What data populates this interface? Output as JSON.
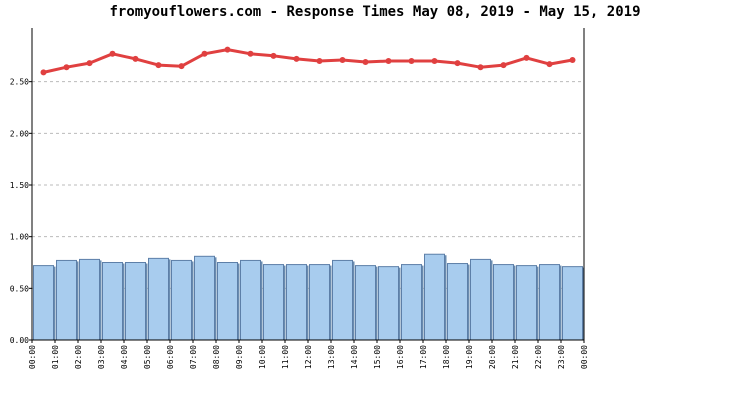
{
  "chart_data": {
    "type": "bar",
    "title": "fromyouflowers.com - Response Times May 08, 2019 - May 15, 2019",
    "xlabel": "",
    "ylabel": "",
    "ylim": [
      0,
      3.0
    ],
    "yticks": [
      "0.00",
      "0.50",
      "1.00",
      "1.50",
      "2.00",
      "2.50"
    ],
    "ytick_values": [
      0,
      0.5,
      1.0,
      1.5,
      2.0,
      2.5
    ],
    "x_labels": [
      "00:00",
      "01:00",
      "02:00",
      "03:00",
      "04:00",
      "05:00",
      "06:00",
      "07:00",
      "08:00",
      "09:00",
      "10:00",
      "11:00",
      "12:00",
      "13:00",
      "14:00",
      "15:00",
      "16:00",
      "17:00",
      "18:00",
      "19:00",
      "20:00",
      "21:00",
      "22:00",
      "23:00",
      "00:00"
    ],
    "grid": true,
    "legend": "none",
    "series": [
      {
        "type": "bar",
        "color": "#a8ccee",
        "values": [
          0.72,
          0.77,
          0.78,
          0.75,
          0.75,
          0.79,
          0.77,
          0.81,
          0.75,
          0.77,
          0.73,
          0.73,
          0.73,
          0.77,
          0.72,
          0.71,
          0.73,
          0.83,
          0.74,
          0.78,
          0.73,
          0.72,
          0.73,
          0.71
        ]
      },
      {
        "type": "line",
        "color": "#e04040",
        "values": [
          2.59,
          2.64,
          2.68,
          2.77,
          2.72,
          2.66,
          2.65,
          2.77,
          2.81,
          2.77,
          2.75,
          2.72,
          2.7,
          2.71,
          2.69,
          2.7,
          2.7,
          2.7,
          2.68,
          2.64,
          2.66,
          2.73,
          2.67,
          2.71
        ]
      }
    ]
  }
}
